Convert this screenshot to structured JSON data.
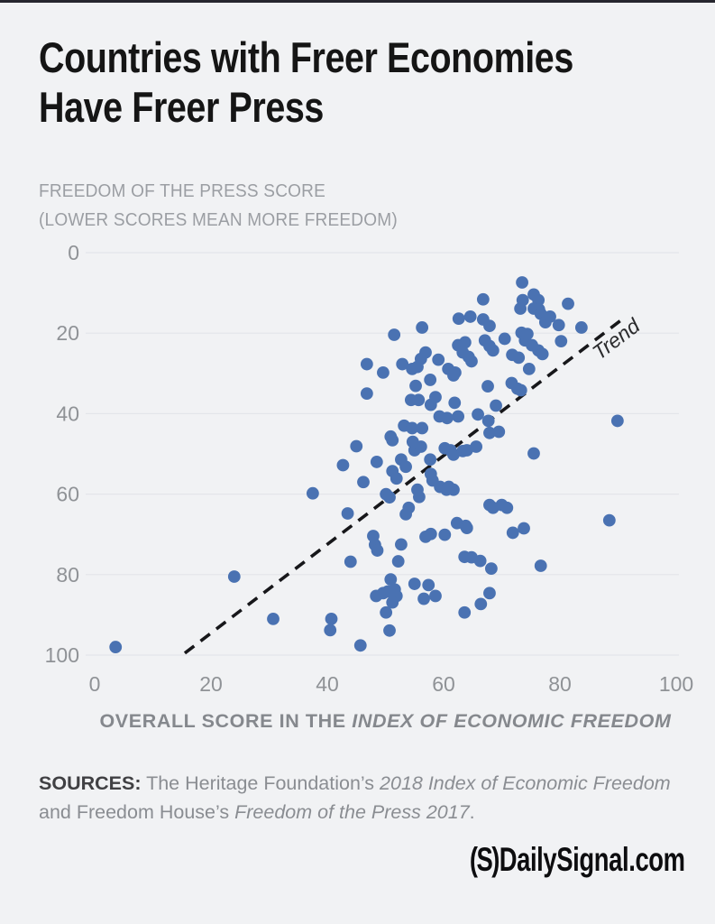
{
  "page": {
    "title_line1": "Countries with Freer Economies",
    "title_line2": "Have Freer Press",
    "logo_mark": "(S)",
    "logo_text": "DailySignal.com"
  },
  "sources": {
    "label": "SOURCES:",
    "text_1": " The Heritage Foundation’s ",
    "italic_1": "2018 Index of Economic Freedom",
    "text_2": "and Freedom House’s ",
    "italic_2": "Freedom of the Press 2017",
    "text_3": "."
  },
  "chart_data": {
    "type": "scatter",
    "title": "Countries with Freer Economies Have Freer Press",
    "ylabel_line1": "FREEDOM OF THE PRESS SCORE",
    "ylabel_line2": "(LOWER SCORES MEAN MORE FREEDOM)",
    "xlabel_prefix": "OVERALL SCORE IN THE ",
    "xlabel_italic": "INDEX OF ECONOMIC FREEDOM",
    "xlim": [
      0,
      100
    ],
    "ylim": [
      0,
      100
    ],
    "y_axis_inverted": true,
    "x_ticks": [
      0,
      20,
      40,
      60,
      80,
      100
    ],
    "y_ticks": [
      0,
      20,
      40,
      60,
      80,
      100
    ],
    "grid": "horizontal",
    "legend": "none",
    "point_color": "#4a72b2",
    "background_color": "#f1f2f4",
    "gridline_color": "#e3e5e9",
    "tick_label_color": "#8f9296",
    "trend": {
      "label": "Trend",
      "x1": 15.5,
      "y1": 99.5,
      "x2": 90.5,
      "y2": 16.8
    },
    "points": [
      [
        3.6,
        98
      ],
      [
        24,
        80.5
      ],
      [
        30.7,
        91
      ],
      [
        37.5,
        59.8
      ],
      [
        40.7,
        91
      ],
      [
        40.5,
        93.8
      ],
      [
        42.7,
        52.8
      ],
      [
        43.5,
        64.8
      ],
      [
        44,
        76.8
      ],
      [
        45,
        48.1
      ],
      [
        45.7,
        97.6
      ],
      [
        46.2,
        57
      ],
      [
        46.8,
        35
      ],
      [
        46.8,
        27.7
      ],
      [
        47.9,
        70.4
      ],
      [
        48.2,
        72.6
      ],
      [
        48.6,
        74
      ],
      [
        48.5,
        52
      ],
      [
        49.6,
        29.8
      ],
      [
        50.9,
        45.7
      ],
      [
        51.2,
        46.6
      ],
      [
        50.9,
        81.2
      ],
      [
        49.6,
        84.6
      ],
      [
        48.4,
        85.3
      ],
      [
        50.4,
        84.2
      ],
      [
        51.6,
        83.7
      ],
      [
        51.9,
        85.3
      ],
      [
        51.2,
        86.9
      ],
      [
        50.1,
        89.4
      ],
      [
        50.7,
        93.9
      ],
      [
        50.1,
        60
      ],
      [
        50.7,
        60.8
      ],
      [
        51.2,
        54.3
      ],
      [
        51.9,
        56.1
      ],
      [
        51.5,
        20.4
      ],
      [
        52.9,
        27.7
      ],
      [
        53.2,
        43
      ],
      [
        52.7,
        51.4
      ],
      [
        53.5,
        53.2
      ],
      [
        54,
        63.4
      ],
      [
        53.5,
        65
      ],
      [
        52.7,
        72.5
      ],
      [
        52.2,
        76.7
      ],
      [
        54.6,
        28.9
      ],
      [
        55.5,
        28.4
      ],
      [
        56.1,
        26.4
      ],
      [
        56.3,
        18.6
      ],
      [
        54.6,
        43.6
      ],
      [
        54.4,
        36.6
      ],
      [
        55.7,
        36.6
      ],
      [
        55.2,
        33.1
      ],
      [
        54.7,
        47
      ],
      [
        55,
        49.1
      ],
      [
        56.1,
        48.2
      ],
      [
        56.3,
        43.6
      ],
      [
        55.5,
        58.9
      ],
      [
        55.8,
        60.7
      ],
      [
        56.9,
        24.8
      ],
      [
        57.7,
        31.6
      ],
      [
        57.8,
        37.8
      ],
      [
        57.7,
        51.4
      ],
      [
        57.8,
        55
      ],
      [
        58.1,
        56.6
      ],
      [
        56.9,
        70.6
      ],
      [
        57.8,
        69.9
      ],
      [
        55,
        82.3
      ],
      [
        56.6,
        86
      ],
      [
        57.4,
        82.6
      ],
      [
        58.6,
        85.3
      ],
      [
        58.6,
        35.9
      ],
      [
        59.1,
        26.6
      ],
      [
        59.3,
        40.7
      ],
      [
        60.6,
        41.1
      ],
      [
        60.2,
        48.6
      ],
      [
        61.2,
        49.1
      ],
      [
        61.7,
        50.2
      ],
      [
        60.8,
        28.9
      ],
      [
        61.7,
        30.5
      ],
      [
        62,
        29.8
      ],
      [
        62.5,
        23
      ],
      [
        63.7,
        22.3
      ],
      [
        63.3,
        24.8
      ],
      [
        62.6,
        16.4
      ],
      [
        61.9,
        37.3
      ],
      [
        62.5,
        40.7
      ],
      [
        59.4,
        58.2
      ],
      [
        60.5,
        58.9
      ],
      [
        60.9,
        58.2
      ],
      [
        61.7,
        58.9
      ],
      [
        60.2,
        70.1
      ],
      [
        62.3,
        67.2
      ],
      [
        63.8,
        67.9
      ],
      [
        63.6,
        75.6
      ],
      [
        63.6,
        89.4
      ],
      [
        63.3,
        49.3
      ],
      [
        64,
        49.1
      ],
      [
        64.3,
        25.9
      ],
      [
        64.6,
        15.9
      ],
      [
        64.8,
        27
      ],
      [
        64.8,
        75.7
      ],
      [
        64,
        68.4
      ],
      [
        65.6,
        48.2
      ],
      [
        65.9,
        40.2
      ],
      [
        66.8,
        11.6
      ],
      [
        66.8,
        16.6
      ],
      [
        67.1,
        21.8
      ],
      [
        67.9,
        18.2
      ],
      [
        67.9,
        23.2
      ],
      [
        68.5,
        24.3
      ],
      [
        67.6,
        33.2
      ],
      [
        67.7,
        41.8
      ],
      [
        67.9,
        44.8
      ],
      [
        69.5,
        44.5
      ],
      [
        69,
        38
      ],
      [
        66.3,
        76.6
      ],
      [
        66.4,
        87.3
      ],
      [
        67.9,
        84.6
      ],
      [
        68.2,
        78.5
      ],
      [
        67.9,
        62.7
      ],
      [
        68.5,
        63.4
      ],
      [
        70,
        62.7
      ],
      [
        70.5,
        21.4
      ],
      [
        73.5,
        7.4
      ],
      [
        73.2,
        13.9
      ],
      [
        73.4,
        19.9
      ],
      [
        71.8,
        25.4
      ],
      [
        72.9,
        26.1
      ],
      [
        71.7,
        32.4
      ],
      [
        72.7,
        33.8
      ],
      [
        73.3,
        34.2
      ],
      [
        74,
        21.8
      ],
      [
        74.4,
        20.2
      ],
      [
        75.2,
        23
      ],
      [
        75.5,
        10.4
      ],
      [
        73.6,
        11.8
      ],
      [
        76.3,
        11.8
      ],
      [
        75.5,
        13.9
      ],
      [
        76.4,
        14.1
      ],
      [
        76.7,
        15.2
      ],
      [
        77.5,
        17.3
      ],
      [
        78.3,
        15.9
      ],
      [
        79.8,
        18
      ],
      [
        80.2,
        22
      ],
      [
        81.4,
        12.7
      ],
      [
        83.7,
        18.6
      ],
      [
        76.3,
        24.3
      ],
      [
        77,
        25.2
      ],
      [
        74.7,
        28.9
      ],
      [
        75.5,
        49.9
      ],
      [
        70.9,
        63.4
      ],
      [
        71.9,
        69.6
      ],
      [
        73.8,
        68.5
      ],
      [
        76.7,
        77.8
      ],
      [
        88.5,
        66.5
      ],
      [
        89.9,
        41.8
      ]
    ]
  }
}
